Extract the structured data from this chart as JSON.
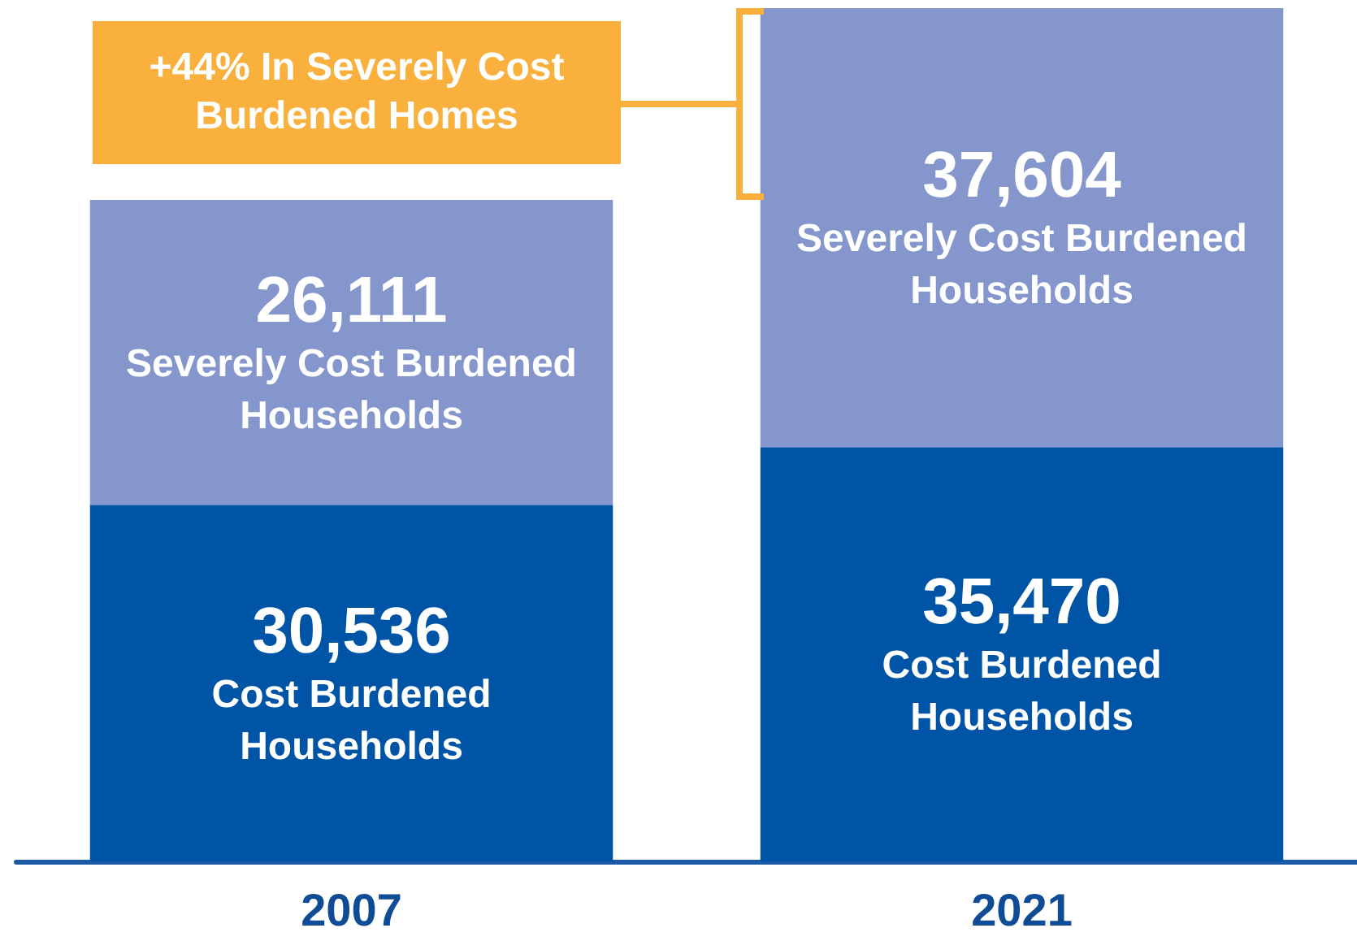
{
  "chart_data": {
    "type": "bar",
    "stacked": true,
    "categories": [
      "2007",
      "2021"
    ],
    "series": [
      {
        "name": "Cost Burdened Households",
        "color": "#0054a6",
        "values": [
          30536,
          35470
        ],
        "value_labels": [
          "30,536",
          "35,470"
        ]
      },
      {
        "name": "Severely Cost Burdened Households",
        "color": "#8496cc",
        "values": [
          26111,
          37604
        ],
        "value_labels": [
          "26,111",
          "37,604"
        ]
      }
    ],
    "annotations": [
      "+44% In Severely Cost Burdened Homes"
    ],
    "legend": false
  }
}
